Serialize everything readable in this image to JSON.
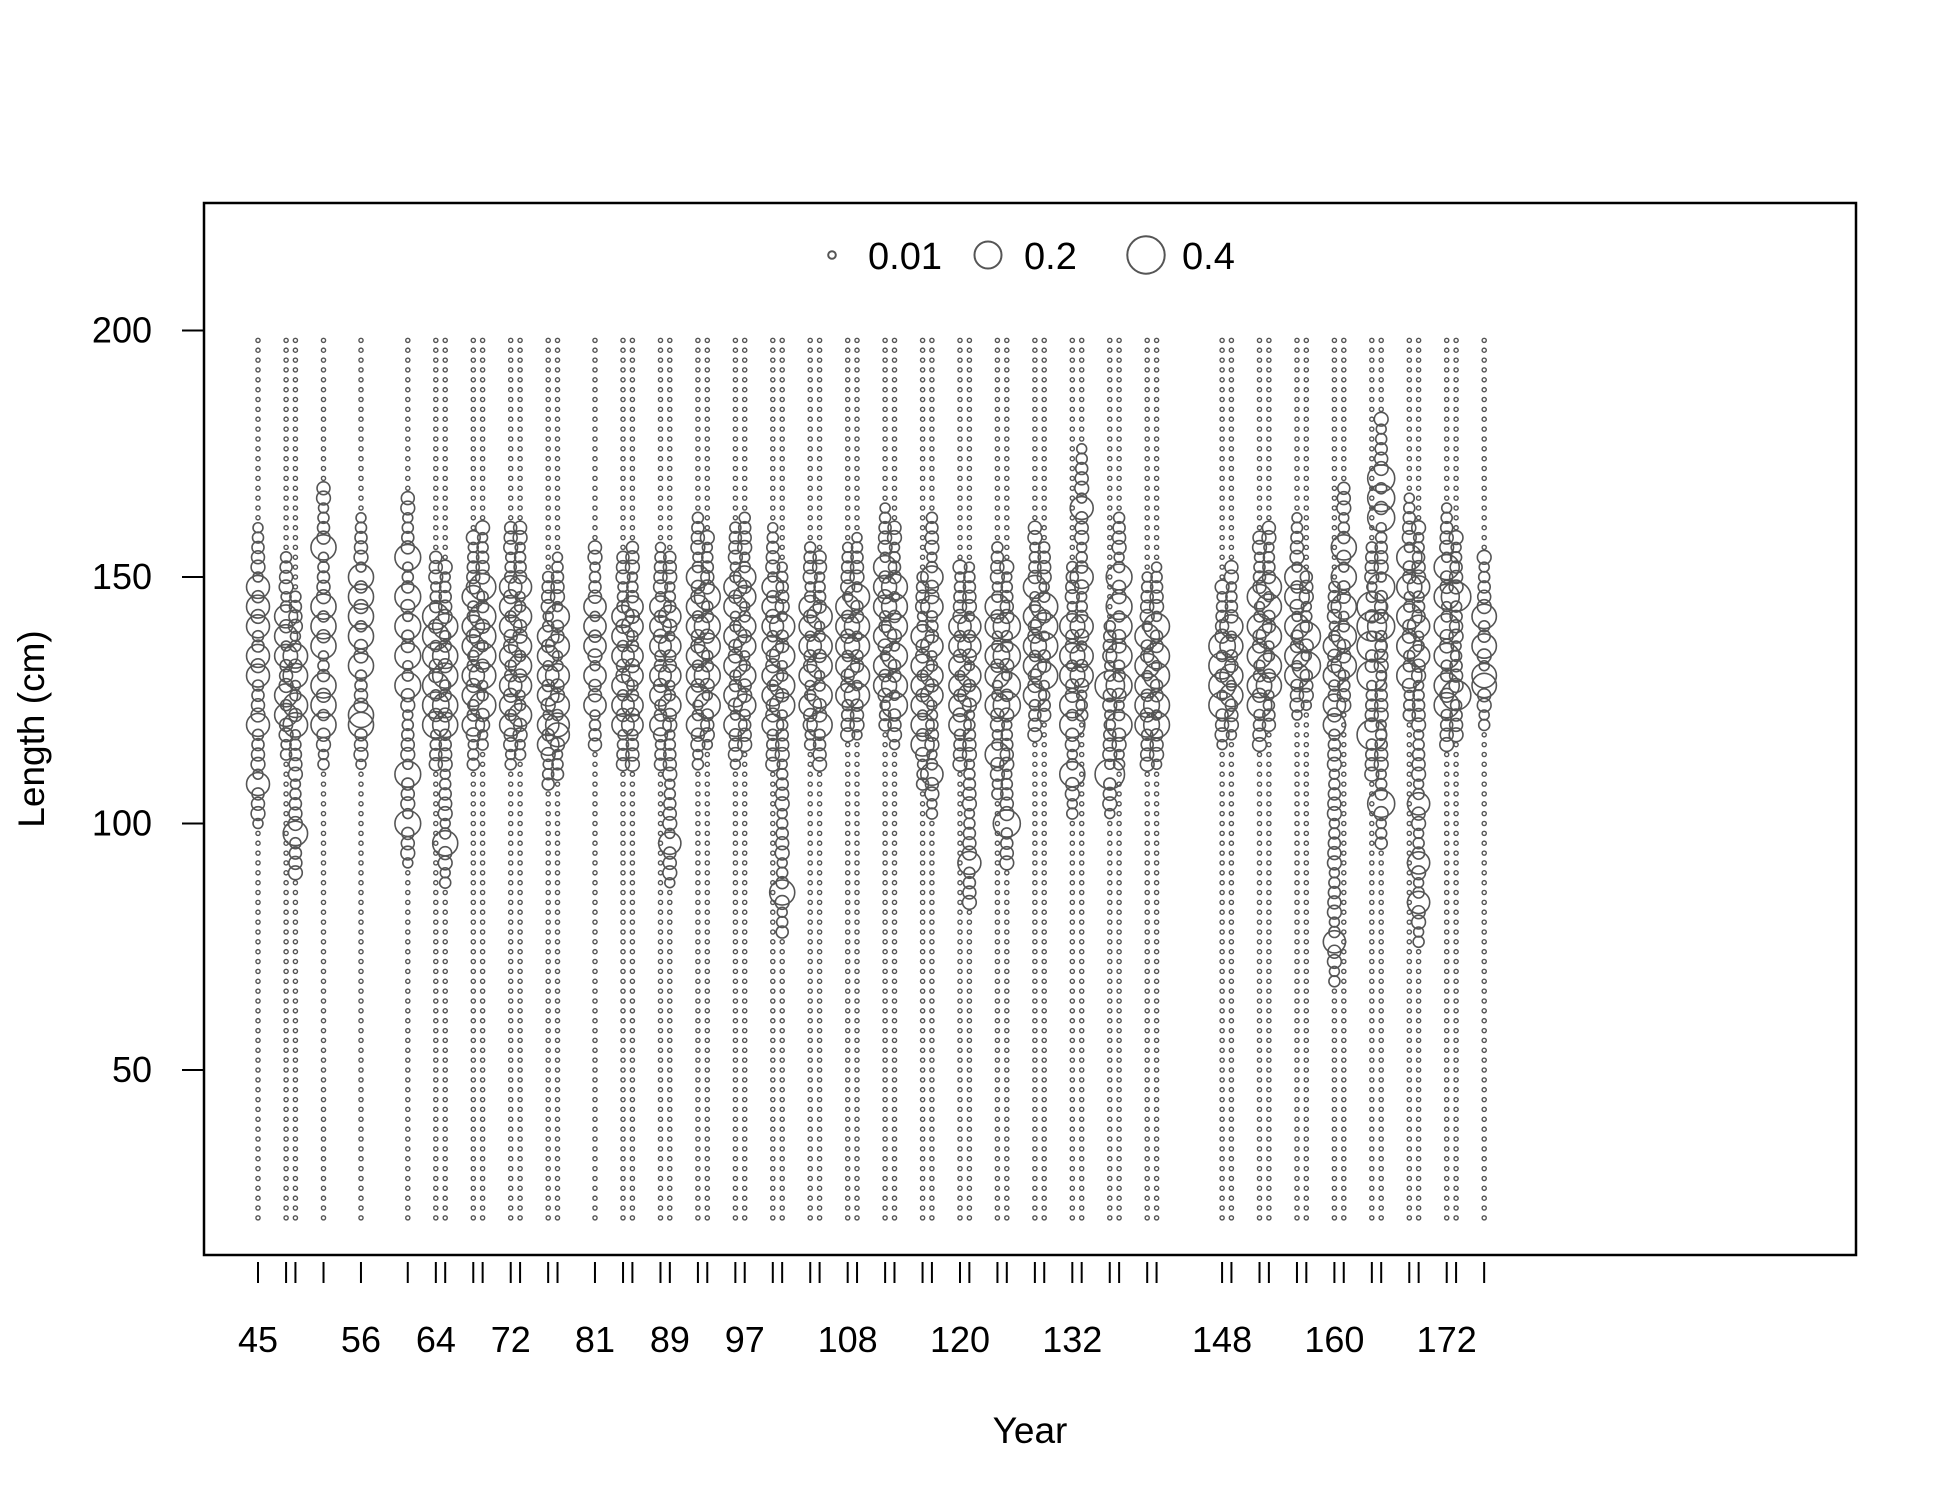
{
  "chart_data": {
    "type": "scatter",
    "subtype": "bubble",
    "title": "",
    "xlabel": "Year",
    "ylabel": "Length (cm)",
    "x_tick_labels": [
      45,
      56,
      64,
      72,
      81,
      89,
      97,
      108,
      120,
      132,
      148,
      160,
      172
    ],
    "y_tick_labels": [
      50,
      100,
      150,
      200
    ],
    "ylim": [
      20,
      200
    ],
    "length_bins": {
      "min": 20,
      "max": 198,
      "step": 2
    },
    "years": [
      45,
      48,
      49,
      52,
      56,
      61,
      64,
      65,
      68,
      69,
      72,
      73,
      76,
      77,
      81,
      84,
      85,
      88,
      89,
      92,
      93,
      96,
      97,
      100,
      101,
      104,
      105,
      108,
      109,
      112,
      113,
      116,
      117,
      120,
      121,
      124,
      125,
      128,
      129,
      132,
      133,
      136,
      137,
      140,
      141,
      148,
      149,
      152,
      153,
      156,
      157,
      160,
      161,
      164,
      165,
      168,
      169,
      172,
      173,
      176
    ],
    "legend": {
      "placement": "top-center",
      "entries": [
        {
          "label": "0.01",
          "value": 0.01
        },
        {
          "label": "0.2",
          "value": 0.2
        },
        {
          "label": "0.4",
          "value": 0.4
        }
      ]
    },
    "grid": false,
    "marker_color": "#555555",
    "highlights": [
      {
        "year": 45,
        "lengths": [
          148,
          144,
          140,
          134,
          130,
          120,
          108
        ],
        "value": 0.14
      },
      {
        "year": 48,
        "lengths": [
          142,
          138,
          134,
          126,
          122
        ],
        "value": 0.14
      },
      {
        "year": 49,
        "lengths": [
          134,
          130,
          124,
          120,
          98
        ],
        "value": 0.16
      },
      {
        "year": 52,
        "lengths": [
          156,
          144,
          140,
          136,
          128,
          124,
          120
        ],
        "value": 0.17
      },
      {
        "year": 56,
        "lengths": [
          150,
          146,
          142,
          138,
          132,
          122,
          120
        ],
        "value": 0.17
      },
      {
        "year": 61,
        "lengths": [
          154,
          146,
          140,
          134,
          128,
          110,
          100
        ],
        "value": 0.18
      },
      {
        "year": 64,
        "lengths": [
          142,
          138,
          134,
          128,
          124,
          120
        ],
        "value": 0.19
      },
      {
        "year": 65,
        "lengths": [
          140,
          134,
          130,
          124,
          120,
          96
        ],
        "value": 0.17
      },
      {
        "year": 68,
        "lengths": [
          146,
          140,
          136,
          130,
          126,
          120
        ],
        "value": 0.13
      },
      {
        "year": 69,
        "lengths": [
          148,
          142,
          138,
          134,
          130,
          124
        ],
        "value": 0.19
      },
      {
        "year": 72,
        "lengths": [
          148,
          144,
          140,
          134,
          128,
          124,
          120
        ],
        "value": 0.13
      },
      {
        "year": 73,
        "lengths": [
          148,
          142,
          136,
          132,
          128,
          122
        ],
        "value": 0.14
      },
      {
        "year": 76,
        "lengths": [
          138,
          134,
          130,
          126,
          120,
          116
        ],
        "value": 0.12
      },
      {
        "year": 77,
        "lengths": [
          142,
          136,
          130,
          124,
          120,
          118
        ],
        "value": 0.15
      },
      {
        "year": 81,
        "lengths": [
          144,
          140,
          136,
          130,
          124
        ],
        "value": 0.13
      },
      {
        "year": 84,
        "lengths": [
          142,
          138,
          134,
          128,
          124,
          120
        ],
        "value": 0.13
      },
      {
        "year": 85,
        "lengths": [
          144,
          140,
          134,
          130,
          124,
          120
        ],
        "value": 0.12
      },
      {
        "year": 88,
        "lengths": [
          144,
          140,
          136,
          130,
          126,
          120
        ],
        "value": 0.12
      },
      {
        "year": 89,
        "lengths": [
          142,
          136,
          130,
          124,
          96
        ],
        "value": 0.13
      },
      {
        "year": 92,
        "lengths": [
          150,
          144,
          140,
          134,
          130,
          126,
          120
        ],
        "value": 0.14
      },
      {
        "year": 93,
        "lengths": [
          146,
          140,
          136,
          130,
          124
        ],
        "value": 0.18
      },
      {
        "year": 96,
        "lengths": [
          148,
          144,
          138,
          132,
          126,
          120
        ],
        "value": 0.14
      },
      {
        "year": 97,
        "lengths": [
          150,
          146,
          140,
          136,
          130,
          124
        ],
        "value": 0.13
      },
      {
        "year": 100,
        "lengths": [
          148,
          144,
          140,
          136,
          130,
          126,
          120
        ],
        "value": 0.12
      },
      {
        "year": 101,
        "lengths": [
          140,
          134,
          128,
          124,
          86
        ],
        "value": 0.17
      },
      {
        "year": 104,
        "lengths": [
          144,
          140,
          136,
          130,
          124
        ],
        "value": 0.13
      },
      {
        "year": 105,
        "lengths": [
          142,
          136,
          132,
          126,
          120
        ],
        "value": 0.17
      },
      {
        "year": 108,
        "lengths": [
          144,
          140,
          136,
          132,
          126
        ],
        "value": 0.15
      },
      {
        "year": 109,
        "lengths": [
          146,
          140,
          136,
          130,
          126
        ],
        "value": 0.17
      },
      {
        "year": 112,
        "lengths": [
          152,
          148,
          144,
          138,
          132,
          128
        ],
        "value": 0.14
      },
      {
        "year": 113,
        "lengths": [
          148,
          144,
          140,
          134,
          128,
          124
        ],
        "value": 0.18
      },
      {
        "year": 116,
        "lengths": [
          138,
          132,
          128,
          124,
          120,
          116
        ],
        "value": 0.14
      },
      {
        "year": 117,
        "lengths": [
          150,
          144,
          136,
          130,
          126,
          110
        ],
        "value": 0.13
      },
      {
        "year": 120,
        "lengths": [
          140,
          136,
          132,
          128,
          124,
          120
        ],
        "value": 0.13
      },
      {
        "year": 121,
        "lengths": [
          140,
          136,
          130,
          126,
          92
        ],
        "value": 0.14
      },
      {
        "year": 124,
        "lengths": [
          144,
          140,
          134,
          130,
          124,
          114
        ],
        "value": 0.16
      },
      {
        "year": 125,
        "lengths": [
          140,
          134,
          128,
          124,
          100
        ],
        "value": 0.2
      },
      {
        "year": 128,
        "lengths": [
          148,
          142,
          136,
          132,
          126
        ],
        "value": 0.14
      },
      {
        "year": 129,
        "lengths": [
          144,
          140,
          136,
          130
        ],
        "value": 0.2
      },
      {
        "year": 132,
        "lengths": [
          140,
          134,
          130,
          124,
          120,
          110
        ],
        "value": 0.17
      },
      {
        "year": 133,
        "lengths": [
          164,
          150,
          140,
          134,
          130
        ],
        "value": 0.14
      },
      {
        "year": 136,
        "lengths": [
          128,
          110
        ],
        "value": 0.24
      },
      {
        "year": 137,
        "lengths": [
          150,
          144,
          140,
          134,
          128,
          120
        ],
        "value": 0.18
      },
      {
        "year": 140,
        "lengths": [
          138,
          132,
          128,
          124,
          120
        ],
        "value": 0.16
      },
      {
        "year": 141,
        "lengths": [
          140,
          134,
          130,
          124,
          120
        ],
        "value": 0.18
      },
      {
        "year": 148,
        "lengths": [
          136,
          132,
          128,
          124
        ],
        "value": 0.19
      },
      {
        "year": 149,
        "lengths": [
          140,
          136,
          130,
          126
        ],
        "value": 0.14
      },
      {
        "year": 152,
        "lengths": [
          146,
          140,
          134,
          128,
          124
        ],
        "value": 0.16
      },
      {
        "year": 153,
        "lengths": [
          148,
          144,
          138,
          132,
          128
        ],
        "value": 0.17
      },
      {
        "year": 156,
        "lengths": [
          150,
          146,
          140,
          134,
          130
        ],
        "value": 0.16
      },
      {
        "year": 157,
        "lengths": [
          138,
          132
        ],
        "value": 0.22
      },
      {
        "year": 160,
        "lengths": [
          136,
          130,
          124,
          120,
          76
        ],
        "value": 0.13
      },
      {
        "year": 161,
        "lengths": [
          156,
          150,
          144,
          138,
          132
        ],
        "value": 0.17
      },
      {
        "year": 164,
        "lengths": [
          144,
          140,
          136,
          130,
          118
        ],
        "value": 0.24
      },
      {
        "year": 165,
        "lengths": [
          170,
          166,
          162,
          148,
          140,
          104
        ],
        "value": 0.2
      },
      {
        "year": 168,
        "lengths": [
          154,
          148,
          142,
          136,
          130
        ],
        "value": 0.17
      },
      {
        "year": 169,
        "lengths": [
          148,
          140,
          134,
          104,
          92,
          84
        ],
        "value": 0.13
      },
      {
        "year": 172,
        "lengths": [
          152,
          146,
          140,
          134,
          128,
          124
        ],
        "value": 0.17
      },
      {
        "year": 173,
        "lengths": [
          146,
          126
        ],
        "value": 0.24
      },
      {
        "year": 176,
        "lengths": [
          142,
          136,
          130,
          128
        ],
        "value": 0.16
      }
    ]
  }
}
